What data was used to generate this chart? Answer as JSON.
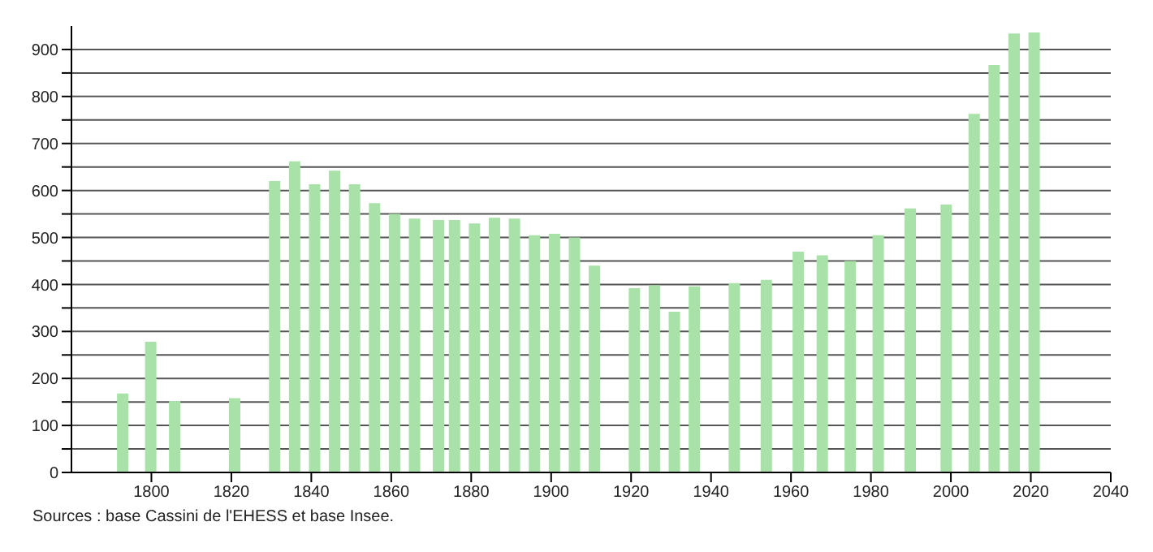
{
  "chart_data": {
    "type": "bar",
    "x": [
      1793,
      1800,
      1806,
      1821,
      1831,
      1836,
      1841,
      1846,
      1851,
      1856,
      1861,
      1866,
      1872,
      1876,
      1881,
      1886,
      1891,
      1896,
      1901,
      1906,
      1911,
      1921,
      1926,
      1931,
      1936,
      1946,
      1954,
      1962,
      1968,
      1975,
      1982,
      1990,
      1999,
      2006,
      2011,
      2016,
      2021
    ],
    "values": [
      168,
      278,
      152,
      158,
      620,
      662,
      613,
      642,
      613,
      573,
      550,
      540,
      537,
      537,
      530,
      542,
      540,
      505,
      508,
      500,
      440,
      392,
      398,
      342,
      396,
      403,
      410,
      470,
      462,
      450,
      505,
      562,
      570,
      763,
      867,
      934,
      936
    ],
    "color": "#a8e2a8",
    "xlim": [
      1780,
      2040
    ],
    "xticks": [
      1800,
      1820,
      1840,
      1860,
      1880,
      1900,
      1920,
      1940,
      1960,
      1980,
      2000,
      2020,
      2040
    ],
    "ylim": [
      0,
      950
    ],
    "yticks": [
      0,
      {
        "value": 50,
        "label": null
      },
      100,
      {
        "value": 150,
        "label": null
      },
      200,
      {
        "value": 250,
        "label": null
      },
      300,
      {
        "value": 350,
        "label": null
      },
      400,
      {
        "value": 450,
        "label": null
      },
      500,
      {
        "value": 550,
        "label": null
      },
      600,
      {
        "value": 650,
        "label": null
      },
      700,
      {
        "value": 750,
        "label": null
      },
      800,
      {
        "value": 850,
        "label": null
      },
      900
    ],
    "grid": "y",
    "annotations": [
      "Sources : base Cassini de l'EHESS et base Insee."
    ]
  }
}
